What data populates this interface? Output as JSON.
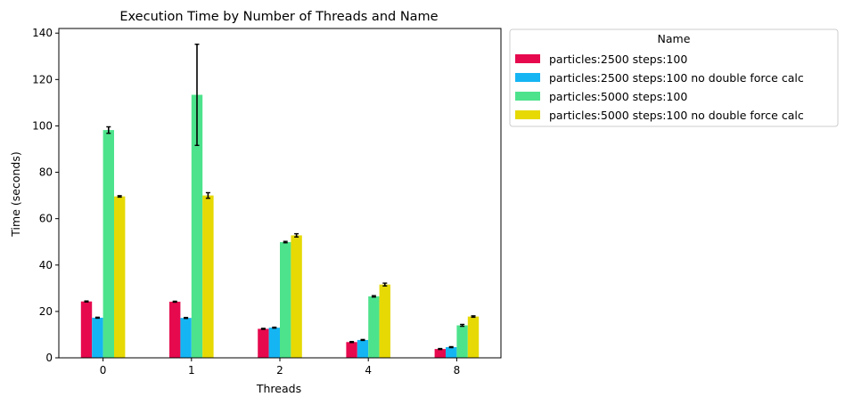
{
  "chart_data": {
    "type": "bar",
    "title": "Execution Time by Number of Threads and Name",
    "xlabel": "Threads",
    "ylabel": "Time (seconds)",
    "categories": [
      "0",
      "1",
      "2",
      "4",
      "8"
    ],
    "ylim": [
      0,
      142
    ],
    "yticks": [
      0,
      20,
      40,
      60,
      80,
      100,
      120,
      140
    ],
    "legend_title": "Name",
    "legend_position": "outside-right-top",
    "series": [
      {
        "name": "particles:2500 steps:100",
        "color": "#e6094e",
        "values": [
          24.3,
          24.2,
          12.5,
          6.8,
          3.8
        ],
        "errors": [
          0.2,
          0.2,
          0.2,
          0.2,
          0.2
        ]
      },
      {
        "name": "particles:2500 steps:100 no double force calc",
        "color": "#15b5f3",
        "values": [
          17.3,
          17.2,
          13.0,
          7.7,
          4.6
        ],
        "errors": [
          0.2,
          0.2,
          0.2,
          0.2,
          0.2
        ]
      },
      {
        "name": "particles:5000 steps:100",
        "color": "#4de38c",
        "values": [
          98.2,
          113.4,
          49.9,
          26.5,
          14.0
        ],
        "errors": [
          1.4,
          21.8,
          0.3,
          0.3,
          0.4
        ]
      },
      {
        "name": "particles:5000 steps:100 no double force calc",
        "color": "#e6d904",
        "values": [
          69.6,
          70.0,
          52.8,
          31.6,
          17.8
        ],
        "errors": [
          0.3,
          1.2,
          0.7,
          0.6,
          0.3
        ]
      }
    ]
  }
}
